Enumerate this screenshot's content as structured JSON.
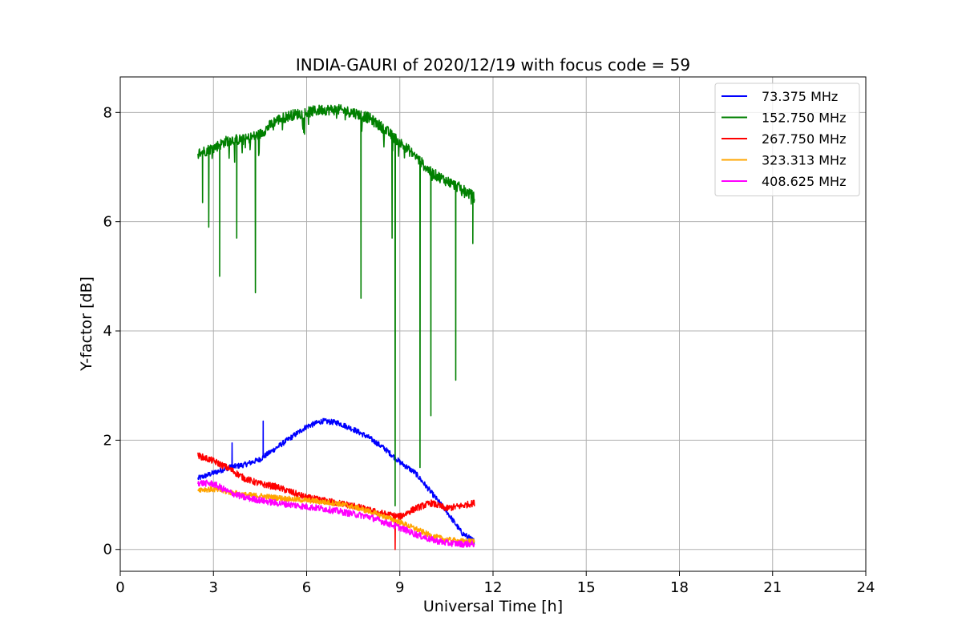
{
  "chart_data": {
    "type": "line",
    "title": "INDIA-GAURI of 2020/12/19 with focus code = 59",
    "xlabel": "Universal Time [h]",
    "ylabel": "Y-factor [dB]",
    "xlim": [
      0,
      24
    ],
    "ylim": [
      -0.4,
      8.65
    ],
    "xticks": [
      0,
      3,
      6,
      9,
      12,
      15,
      18,
      21,
      24
    ],
    "yticks": [
      0,
      2,
      4,
      6,
      8
    ],
    "grid": true,
    "legend_position": "top-right",
    "series": [
      {
        "name": " 73.375 MHz",
        "color": "#0000ff",
        "x": [
          2.5,
          3.0,
          3.5,
          4.0,
          4.5,
          5.0,
          5.5,
          6.0,
          6.5,
          7.0,
          7.5,
          8.0,
          8.5,
          9.0,
          9.5,
          10.0,
          10.5,
          11.0,
          11.4
        ],
        "y": [
          1.3,
          1.4,
          1.5,
          1.55,
          1.65,
          1.85,
          2.05,
          2.25,
          2.35,
          2.32,
          2.2,
          2.05,
          1.85,
          1.6,
          1.4,
          1.05,
          0.7,
          0.3,
          0.15
        ],
        "spikes": [
          {
            "x": 3.6,
            "y": 1.95
          },
          {
            "x": 4.6,
            "y": 2.35
          }
        ]
      },
      {
        "name": "152.750 MHz",
        "color": "#008000",
        "x": [
          2.5,
          3.0,
          3.5,
          4.0,
          4.5,
          5.0,
          5.5,
          6.0,
          6.5,
          7.0,
          7.5,
          8.0,
          8.5,
          9.0,
          9.5,
          10.0,
          10.5,
          11.0,
          11.4
        ],
        "y": [
          7.25,
          7.35,
          7.5,
          7.5,
          7.6,
          7.85,
          7.95,
          8.0,
          8.05,
          8.05,
          8.0,
          7.9,
          7.7,
          7.45,
          7.2,
          6.9,
          6.75,
          6.6,
          6.45
        ],
        "dips": [
          {
            "x": 2.65,
            "y": 6.35
          },
          {
            "x": 2.85,
            "y": 5.9
          },
          {
            "x": 3.2,
            "y": 5.0
          },
          {
            "x": 3.75,
            "y": 5.7
          },
          {
            "x": 4.35,
            "y": 4.7
          },
          {
            "x": 7.75,
            "y": 4.6
          },
          {
            "x": 8.75,
            "y": 5.7
          },
          {
            "x": 8.85,
            "y": 0.8
          },
          {
            "x": 9.65,
            "y": 1.5
          },
          {
            "x": 10.0,
            "y": 2.45
          },
          {
            "x": 10.8,
            "y": 3.1
          },
          {
            "x": 11.35,
            "y": 5.6
          }
        ]
      },
      {
        "name": "267.750 MHz",
        "color": "#ff0000",
        "x": [
          2.5,
          3.0,
          3.5,
          4.0,
          4.5,
          5.0,
          5.5,
          6.0,
          6.5,
          7.0,
          7.5,
          8.0,
          8.5,
          9.0,
          9.5,
          10.0,
          10.5,
          11.0,
          11.4
        ],
        "y": [
          1.72,
          1.62,
          1.48,
          1.3,
          1.2,
          1.15,
          1.05,
          0.95,
          0.9,
          0.85,
          0.8,
          0.72,
          0.65,
          0.6,
          0.75,
          0.85,
          0.75,
          0.8,
          0.85
        ],
        "dips": [
          {
            "x": 8.85,
            "y": 0.0
          }
        ]
      },
      {
        "name": "323.313 MHz",
        "color": "#ffa500",
        "x": [
          2.5,
          3.0,
          3.5,
          4.0,
          4.5,
          5.0,
          5.5,
          6.0,
          6.5,
          7.0,
          7.5,
          8.0,
          8.5,
          9.0,
          9.5,
          10.0,
          10.5,
          11.0,
          11.4
        ],
        "y": [
          1.1,
          1.1,
          1.05,
          1.0,
          0.98,
          0.95,
          0.92,
          0.9,
          0.87,
          0.84,
          0.78,
          0.7,
          0.6,
          0.5,
          0.38,
          0.25,
          0.18,
          0.15,
          0.15
        ]
      },
      {
        "name": "408.625 MHz",
        "color": "#ff00ff",
        "x": [
          2.5,
          3.0,
          3.5,
          4.0,
          4.5,
          5.0,
          5.5,
          6.0,
          6.5,
          7.0,
          7.5,
          8.0,
          8.5,
          9.0,
          9.5,
          10.0,
          10.5,
          11.0,
          11.4
        ],
        "y": [
          1.22,
          1.2,
          1.05,
          0.95,
          0.9,
          0.85,
          0.82,
          0.78,
          0.75,
          0.7,
          0.65,
          0.6,
          0.5,
          0.4,
          0.28,
          0.18,
          0.12,
          0.1,
          0.1
        ]
      }
    ]
  }
}
